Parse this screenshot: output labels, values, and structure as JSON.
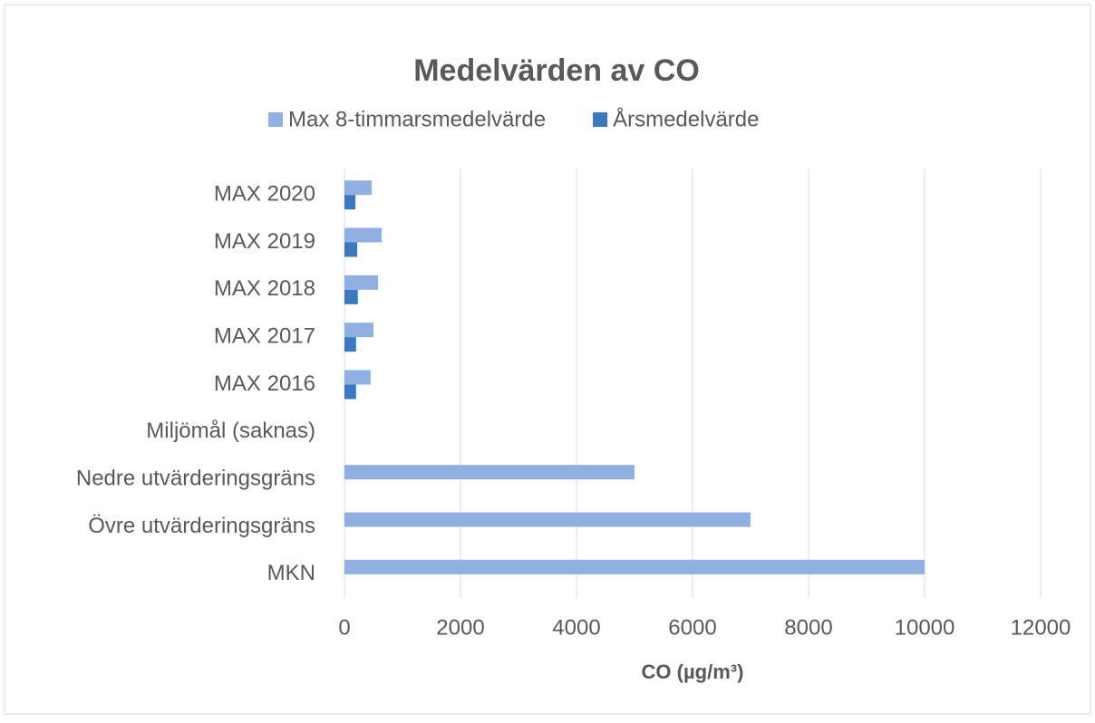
{
  "chart_data": {
    "type": "bar",
    "orientation": "horizontal",
    "title": "Medelvärden av CO",
    "x_label": "CO (µg/m³)",
    "categories": [
      "MKN",
      "Övre utvärderingsgräns",
      "Nedre utvärderingsgräns",
      "Miljömål (saknas)",
      "MAX 2016",
      "MAX 2017",
      "MAX 2018",
      "MAX 2019",
      "MAX 2020"
    ],
    "series": [
      {
        "name": "Max 8-timmarsmedelvärde",
        "color": "#8fb0e0",
        "values": [
          10000,
          7000,
          5000,
          null,
          450,
          500,
          580,
          640,
          470
        ]
      },
      {
        "name": "Årsmedelvärde",
        "color": "#3a78c0",
        "values": [
          null,
          null,
          null,
          null,
          200,
          200,
          230,
          220,
          190
        ]
      }
    ],
    "xlim": [
      0,
      12000
    ],
    "xticks": [
      0,
      2000,
      4000,
      6000,
      8000,
      10000,
      12000
    ],
    "grid": true,
    "legend": "top"
  }
}
